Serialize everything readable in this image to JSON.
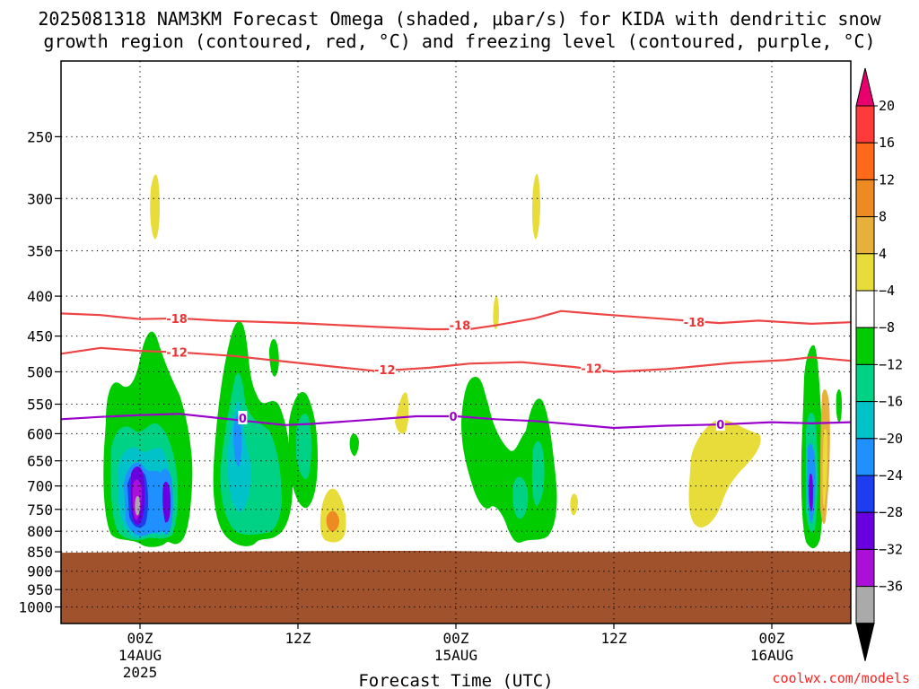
{
  "title_line1": "2025081318 NAM3KM Forecast Omega (shaded, μbar/s) for KIDA with dendritic snow",
  "title_line2": "growth region (contoured, red, °C) and freezing level (contoured, purple, °C)",
  "credit": "coolwx.com/models",
  "colors": {
    "terrain": "#a0522d",
    "dgz_contour": "#ee4444",
    "freezing_contour": "#9900cc",
    "grid": "#000000"
  },
  "chart_data": {
    "type": "heatmap",
    "title": "2025081318 NAM3KM Forecast Omega (shaded, μbar/s) for KIDA with dendritic snow growth region (contoured, red, °C) and freezing level (contoured, purple, °C)",
    "xlabel": "Forecast Time (UTC)",
    "ylabel": "",
    "x_unit": "hours since 2025-08-13 18Z",
    "xlim": [
      0,
      60
    ],
    "y_scale": "log (pressure, hPa)",
    "ylim_hpa": [
      200,
      1050
    ],
    "grid": true,
    "y_ticks": [
      250,
      300,
      350,
      400,
      450,
      500,
      550,
      600,
      650,
      700,
      750,
      800,
      850,
      900,
      950,
      1000
    ],
    "x_ticks": [
      {
        "hour": 6,
        "label": "00Z",
        "date": "14AUG",
        "year": "2025"
      },
      {
        "hour": 18,
        "label": "12Z",
        "date": "",
        "year": ""
      },
      {
        "hour": 30,
        "label": "00Z",
        "date": "15AUG",
        "year": ""
      },
      {
        "hour": 42,
        "label": "12Z",
        "date": "",
        "year": ""
      },
      {
        "hour": 54,
        "label": "00Z",
        "date": "16AUG",
        "year": ""
      }
    ],
    "colorbar": {
      "label_unit": "μbar/s",
      "ticks": [
        "20",
        "16",
        "12",
        "8",
        "4",
        "−4",
        "−8",
        "−12",
        "−16",
        "−20",
        "−24",
        "−28",
        "−32",
        "−36"
      ],
      "bins": [
        {
          "range": ">20",
          "color": "#e8006e"
        },
        {
          "range": "16 to 20",
          "color": "#ff3a3a"
        },
        {
          "range": "12 to 16",
          "color": "#ff6a1a"
        },
        {
          "range": "8 to 12",
          "color": "#ee8a22"
        },
        {
          "range": "4 to 8",
          "color": "#e6b03a"
        },
        {
          "range": "0 to 4",
          "color": "#e8dc3a"
        },
        {
          "range": "-4 to 4",
          "color": "#ffffff"
        },
        {
          "range": "-8 to -4",
          "color": "#00cc00"
        },
        {
          "range": "-12 to -8",
          "color": "#00d285"
        },
        {
          "range": "-16 to -12",
          "color": "#00c2c8"
        },
        {
          "range": "-20 to -16",
          "color": "#1e90ff"
        },
        {
          "range": "-24 to -20",
          "color": "#1e3cf0"
        },
        {
          "range": "-28 to -24",
          "color": "#6a00e0"
        },
        {
          "range": "-32 to -28",
          "color": "#aa10d8"
        },
        {
          "range": "-36 to -32",
          "color": "#aaaaaa"
        },
        {
          "range": "<-36",
          "color": "#000000"
        }
      ]
    },
    "contours": [
      {
        "label": "-18",
        "color": "#ee4444",
        "points": [
          [
            0,
            421
          ],
          [
            3,
            423
          ],
          [
            6,
            428
          ],
          [
            9,
            427
          ],
          [
            12,
            430
          ],
          [
            18,
            433
          ],
          [
            24,
            438
          ],
          [
            28,
            441
          ],
          [
            31,
            441
          ],
          [
            33,
            436
          ],
          [
            36,
            427
          ],
          [
            38,
            418
          ],
          [
            41,
            422
          ],
          [
            46,
            428
          ],
          [
            50,
            433
          ],
          [
            53,
            430
          ],
          [
            57,
            434
          ],
          [
            60,
            432
          ]
        ]
      },
      {
        "label": "-12",
        "color": "#ee4444",
        "points": [
          [
            0,
            474
          ],
          [
            3,
            466
          ],
          [
            6,
            470
          ],
          [
            9,
            472
          ],
          [
            13,
            477
          ],
          [
            18,
            487
          ],
          [
            24,
            499
          ],
          [
            28,
            494
          ],
          [
            31,
            488
          ],
          [
            35,
            486
          ],
          [
            39,
            493
          ],
          [
            42,
            500
          ],
          [
            46,
            496
          ],
          [
            51,
            487
          ],
          [
            55,
            483
          ],
          [
            57,
            479
          ],
          [
            60,
            484
          ]
        ]
      },
      {
        "label": "0",
        "color": "#9900cc",
        "points": [
          [
            0,
            575
          ],
          [
            3,
            571
          ],
          [
            6,
            568
          ],
          [
            9,
            566
          ],
          [
            12,
            573
          ],
          [
            17,
            585
          ],
          [
            19,
            583
          ],
          [
            24,
            575
          ],
          [
            27,
            570
          ],
          [
            30,
            570
          ],
          [
            33,
            575
          ],
          [
            36,
            578
          ],
          [
            42,
            590
          ],
          [
            46,
            586
          ],
          [
            50,
            584
          ],
          [
            54,
            580
          ],
          [
            57,
            582
          ],
          [
            60,
            580
          ]
        ]
      }
    ],
    "contour_labels": [
      {
        "text": "-18",
        "x": 8.8,
        "p": 427
      },
      {
        "text": "-18",
        "x": 30.3,
        "p": 436
      },
      {
        "text": "-18",
        "x": 48.1,
        "p": 432
      },
      {
        "text": "-12",
        "x": 8.8,
        "p": 472
      },
      {
        "text": "-12",
        "x": 24.6,
        "p": 497
      },
      {
        "text": "-12",
        "x": 40.3,
        "p": 495
      },
      {
        "text": "0",
        "x": 13.8,
        "p": 573
      },
      {
        "text": "0",
        "x": 29.8,
        "p": 570
      },
      {
        "text": "0",
        "x": 50.1,
        "p": 584
      }
    ],
    "terrain_top_hpa": 850,
    "omega_features": [
      {
        "x": 6.5,
        "p_top": 450,
        "p_bot": 845,
        "min_value": -36,
        "shape": "rain band core"
      },
      {
        "x": 12.5,
        "p_top": 440,
        "p_bot": 830,
        "min_value": -16
      },
      {
        "x": 19.5,
        "p_top": 700,
        "p_bot": 810,
        "max_value": 12
      },
      {
        "x": 35.5,
        "p_top": 540,
        "p_bot": 830,
        "min_value": -12
      },
      {
        "x": 49.0,
        "p_top": 575,
        "p_bot": 790,
        "max_value": 8
      },
      {
        "x": 57.5,
        "p_top": 480,
        "p_bot": 840,
        "min_value": -28
      },
      {
        "x": 7.0,
        "p_top": 280,
        "p_bot": 345,
        "max_value": 4
      },
      {
        "x": 35.8,
        "p_top": 280,
        "p_bot": 345,
        "max_value": 4
      }
    ]
  }
}
